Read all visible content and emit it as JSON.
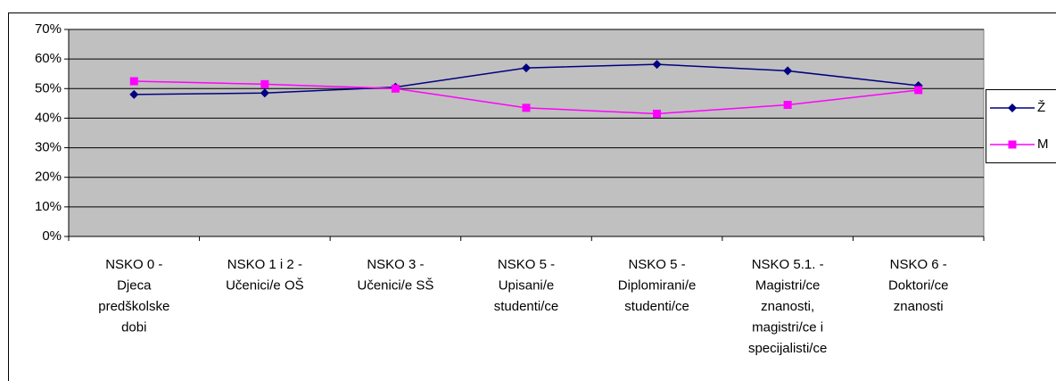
{
  "chart_data": {
    "type": "line",
    "categories": [
      "NSKO 0 -\nDjeca\npredškolske\ndobi",
      "NSKO 1 i 2 -\nUčenici/e OŠ",
      "NSKO 3 -\nUčenici/e SŠ",
      "NSKO 5 -\nUpisani/e\nstudenti/ce",
      "NSKO 5 -\nDiplomirani/e\nstudenti/ce",
      "NSKO 5.1. -\nMagistri/ce\nznanosti,\nmagistri/ce i\nspecijalisti/ce",
      "NSKO 6 -\nDoktori/ce\nznanosti"
    ],
    "series": [
      {
        "name": "Ž",
        "color": "#000080",
        "marker": "diamond",
        "values": [
          48,
          48.5,
          50.5,
          57,
          58.2,
          56,
          51
        ]
      },
      {
        "name": "M",
        "color": "#ff00ff",
        "marker": "square",
        "values": [
          52.5,
          51.5,
          50,
          43.5,
          41.5,
          44.5,
          49.5
        ]
      }
    ],
    "ylim": [
      0,
      70
    ],
    "yticks": [
      {
        "value": 0,
        "label": "0%"
      },
      {
        "value": 10,
        "label": "10%"
      },
      {
        "value": 20,
        "label": "20%"
      },
      {
        "value": 30,
        "label": "30%"
      },
      {
        "value": 40,
        "label": "40%"
      },
      {
        "value": 50,
        "label": "50%"
      },
      {
        "value": 60,
        "label": "60%"
      },
      {
        "value": 70,
        "label": "70%"
      }
    ],
    "grid": true,
    "legend": "right"
  }
}
